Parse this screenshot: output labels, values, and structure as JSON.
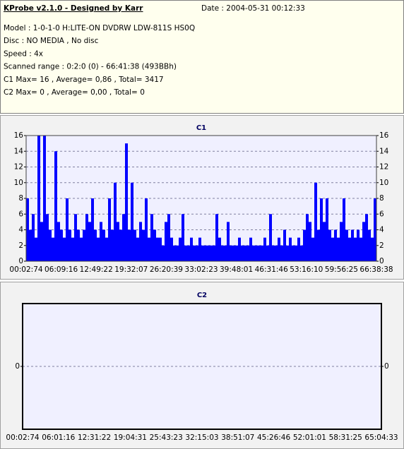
{
  "header": {
    "title": "KProbe v2.1.0 - Designed by Karr",
    "date": "Date : 2004-05-31 00:12:33",
    "lines": [
      "Model : 1-0-1-0 H:LITE-ON DVDRW LDW-811S   HS0Q",
      "Disc : NO MEDIA , No disc",
      "Speed : 4x",
      "Scanned range : 0:2:0 (0) - 66:41:38 (493BBh)",
      "C1 Max= 16 , Average= 0,86 , Total= 3417",
      "C2 Max= 0 , Average= 0,00 , Total= 0"
    ]
  },
  "chart_data": [
    {
      "type": "bar",
      "title": "C1",
      "color": "#0000ff",
      "grid": true,
      "ylim": [
        0,
        16
      ],
      "yticks": [
        0,
        2,
        4,
        6,
        8,
        10,
        12,
        14,
        16
      ],
      "xtick_labels": [
        "00:02:74",
        "06:09:16",
        "12:49:22",
        "19:32:07",
        "26:20:39",
        "33:02:23",
        "39:48:01",
        "46:31:46",
        "53:16:10",
        "59:56:25",
        "66:38:38"
      ],
      "values": [
        8,
        4,
        6,
        3,
        16,
        5,
        16,
        6,
        4,
        3,
        14,
        5,
        4,
        3,
        8,
        4,
        3,
        6,
        4,
        3,
        4,
        6,
        5,
        8,
        4,
        3,
        5,
        4,
        3,
        8,
        4,
        10,
        5,
        4,
        6,
        15,
        4,
        10,
        4,
        3,
        5,
        4,
        8,
        3,
        6,
        4,
        3,
        3,
        2,
        5,
        6,
        3,
        2,
        2,
        3,
        6,
        2,
        2,
        3,
        2,
        2,
        3,
        2,
        2,
        2,
        2,
        2,
        6,
        3,
        2,
        2,
        5,
        2,
        2,
        2,
        3,
        2,
        2,
        2,
        3,
        2,
        2,
        2,
        2,
        3,
        2,
        6,
        2,
        2,
        3,
        2,
        4,
        2,
        3,
        2,
        2,
        3,
        2,
        4,
        6,
        5,
        3,
        10,
        4,
        8,
        5,
        8,
        4,
        3,
        4,
        3,
        5,
        8,
        4,
        3,
        4,
        3,
        4,
        3,
        5,
        6,
        4,
        3,
        8
      ]
    },
    {
      "type": "bar",
      "title": "C2",
      "color": "#0000ff",
      "grid": true,
      "ylim": [
        -1,
        1
      ],
      "yticks": [
        0
      ],
      "xtick_labels": [
        "00:02:74",
        "06:01:16",
        "12:31:22",
        "19:04:31",
        "25:43:23",
        "32:15:03",
        "38:51:07",
        "45:26:46",
        "52:01:01",
        "58:31:25",
        "65:04:33"
      ]
    }
  ]
}
